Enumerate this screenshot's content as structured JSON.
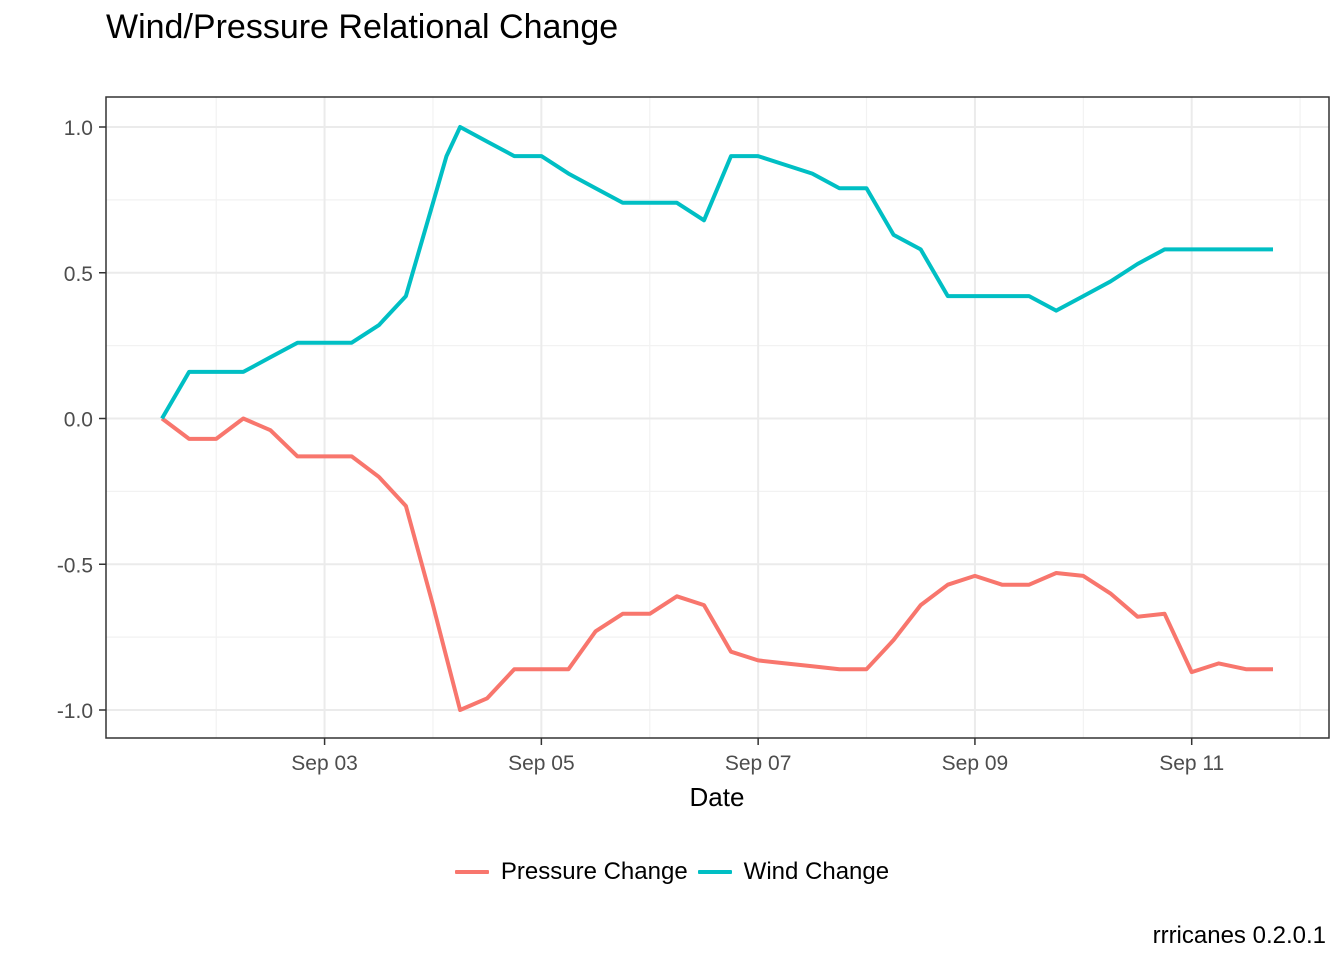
{
  "chart_data": {
    "type": "line",
    "title": "Wind/Pressure Relational Change",
    "xlabel": "Date",
    "ylabel": "",
    "caption": "rrricanes 0.2.0.1",
    "ylim": [
      -1.0,
      1.0
    ],
    "y_ticks": [
      "-1.0",
      "-0.5",
      "0.0",
      "0.5",
      "1.0"
    ],
    "x_ticks": [
      {
        "date": "2017-09-03",
        "label": "Sep 03"
      },
      {
        "date": "2017-09-05",
        "label": "Sep 05"
      },
      {
        "date": "2017-09-07",
        "label": "Sep 07"
      },
      {
        "date": "2017-09-09",
        "label": "Sep 09"
      },
      {
        "date": "2017-09-11",
        "label": "Sep 11"
      }
    ],
    "grid": true,
    "legend_position": "bottom",
    "x": [
      "2017-09-01 12:00",
      "2017-09-01 18:00",
      "2017-09-02 00:00",
      "2017-09-02 06:00",
      "2017-09-02 12:00",
      "2017-09-02 18:00",
      "2017-09-03 00:00",
      "2017-09-03 06:00",
      "2017-09-03 12:00",
      "2017-09-03 18:00",
      "2017-09-04 00:00",
      "2017-09-04 03:00",
      "2017-09-04 06:00",
      "2017-09-04 12:00",
      "2017-09-04 18:00",
      "2017-09-05 00:00",
      "2017-09-05 06:00",
      "2017-09-05 12:00",
      "2017-09-05 18:00",
      "2017-09-06 00:00",
      "2017-09-06 06:00",
      "2017-09-06 12:00",
      "2017-09-06 18:00",
      "2017-09-07 00:00",
      "2017-09-07 06:00",
      "2017-09-07 12:00",
      "2017-09-07 18:00",
      "2017-09-08 00:00",
      "2017-09-08 06:00",
      "2017-09-08 12:00",
      "2017-09-08 18:00",
      "2017-09-09 00:00",
      "2017-09-09 06:00",
      "2017-09-09 12:00",
      "2017-09-09 18:00",
      "2017-09-10 00:00",
      "2017-09-10 06:00",
      "2017-09-10 12:00",
      "2017-09-10 18:00",
      "2017-09-11 00:00",
      "2017-09-11 06:00",
      "2017-09-11 12:00",
      "2017-09-11 18:00"
    ],
    "series": [
      {
        "name": "Pressure Change",
        "color": "#F8766D",
        "values": [
          0.0,
          -0.07,
          -0.07,
          0.0,
          -0.04,
          -0.13,
          -0.13,
          -0.13,
          -0.2,
          -0.3,
          -0.64,
          -0.82,
          -1.0,
          -0.96,
          -0.86,
          -0.86,
          -0.86,
          -0.73,
          -0.67,
          -0.67,
          -0.61,
          -0.64,
          -0.8,
          -0.83,
          -0.84,
          -0.85,
          -0.86,
          -0.86,
          -0.76,
          -0.64,
          -0.57,
          -0.54,
          -0.57,
          -0.57,
          -0.53,
          -0.54,
          -0.6,
          -0.68,
          -0.67,
          -0.87,
          -0.84,
          -0.86,
          -0.86
        ]
      },
      {
        "name": "Wind Change",
        "color": "#00BFC4",
        "values": [
          0.0,
          0.16,
          0.16,
          0.16,
          0.21,
          0.26,
          0.26,
          0.26,
          0.32,
          0.42,
          0.74,
          0.9,
          1.0,
          0.95,
          0.9,
          0.9,
          0.84,
          0.79,
          0.74,
          0.74,
          0.74,
          0.68,
          0.9,
          0.9,
          0.87,
          0.84,
          0.79,
          0.79,
          0.63,
          0.58,
          0.42,
          0.42,
          0.42,
          0.42,
          0.37,
          0.42,
          0.47,
          0.53,
          0.58,
          0.58,
          0.58,
          0.58,
          0.58
        ]
      }
    ]
  }
}
